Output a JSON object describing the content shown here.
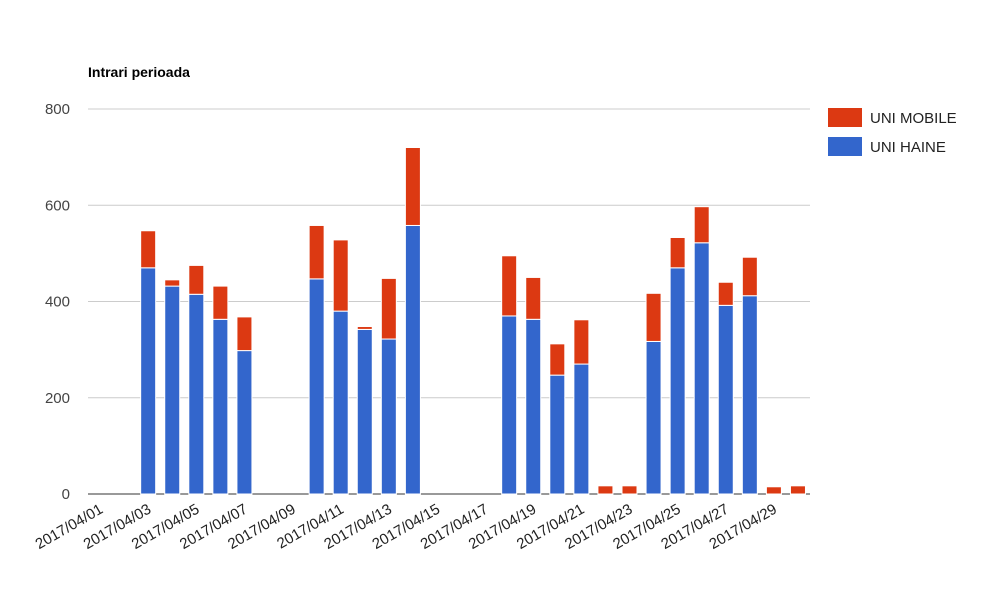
{
  "chart_data": {
    "type": "bar",
    "stacked": true,
    "title": "Intrari perioada",
    "xlabel": "",
    "ylabel": "",
    "ylim": [
      0,
      800
    ],
    "yticks": [
      "0",
      "200",
      "400",
      "600",
      "800"
    ],
    "grid": true,
    "legend_position": "right",
    "categories": [
      "2017/04/01",
      "2017/04/02",
      "2017/04/03",
      "2017/04/04",
      "2017/04/05",
      "2017/04/06",
      "2017/04/07",
      "2017/04/08",
      "2017/04/09",
      "2017/04/10",
      "2017/04/11",
      "2017/04/12",
      "2017/04/13",
      "2017/04/14",
      "2017/04/15",
      "2017/04/16",
      "2017/04/17",
      "2017/04/18",
      "2017/04/19",
      "2017/04/20",
      "2017/04/21",
      "2017/04/22",
      "2017/04/23",
      "2017/04/24",
      "2017/04/25",
      "2017/04/26",
      "2017/04/27",
      "2017/04/28",
      "2017/04/29",
      "2017/04/30"
    ],
    "xtick_labels": [
      "2017/04/01",
      "2017/04/03",
      "2017/04/05",
      "2017/04/07",
      "2017/04/09",
      "2017/04/11",
      "2017/04/13",
      "2017/04/15",
      "2017/04/17",
      "2017/04/19",
      "2017/04/21",
      "2017/04/23",
      "2017/04/25",
      "2017/04/27",
      "2017/04/29"
    ],
    "series": [
      {
        "name": "UNI HAINE",
        "color": "#3366cc",
        "values": [
          0,
          0,
          470,
          432,
          415,
          363,
          298,
          0,
          0,
          447,
          380,
          342,
          322,
          558,
          0,
          0,
          0,
          370,
          363,
          247,
          270,
          0,
          0,
          317,
          470,
          522,
          392,
          412,
          0,
          0
        ]
      },
      {
        "name": "UNI MOBILE",
        "color": "#dc3912",
        "values": [
          0,
          0,
          77,
          13,
          60,
          69,
          70,
          0,
          0,
          111,
          148,
          6,
          126,
          162,
          0,
          0,
          0,
          125,
          87,
          65,
          92,
          17,
          17,
          100,
          63,
          75,
          48,
          80,
          15,
          17
        ]
      }
    ],
    "legend": [
      "UNI MOBILE",
      "UNI HAINE"
    ]
  }
}
